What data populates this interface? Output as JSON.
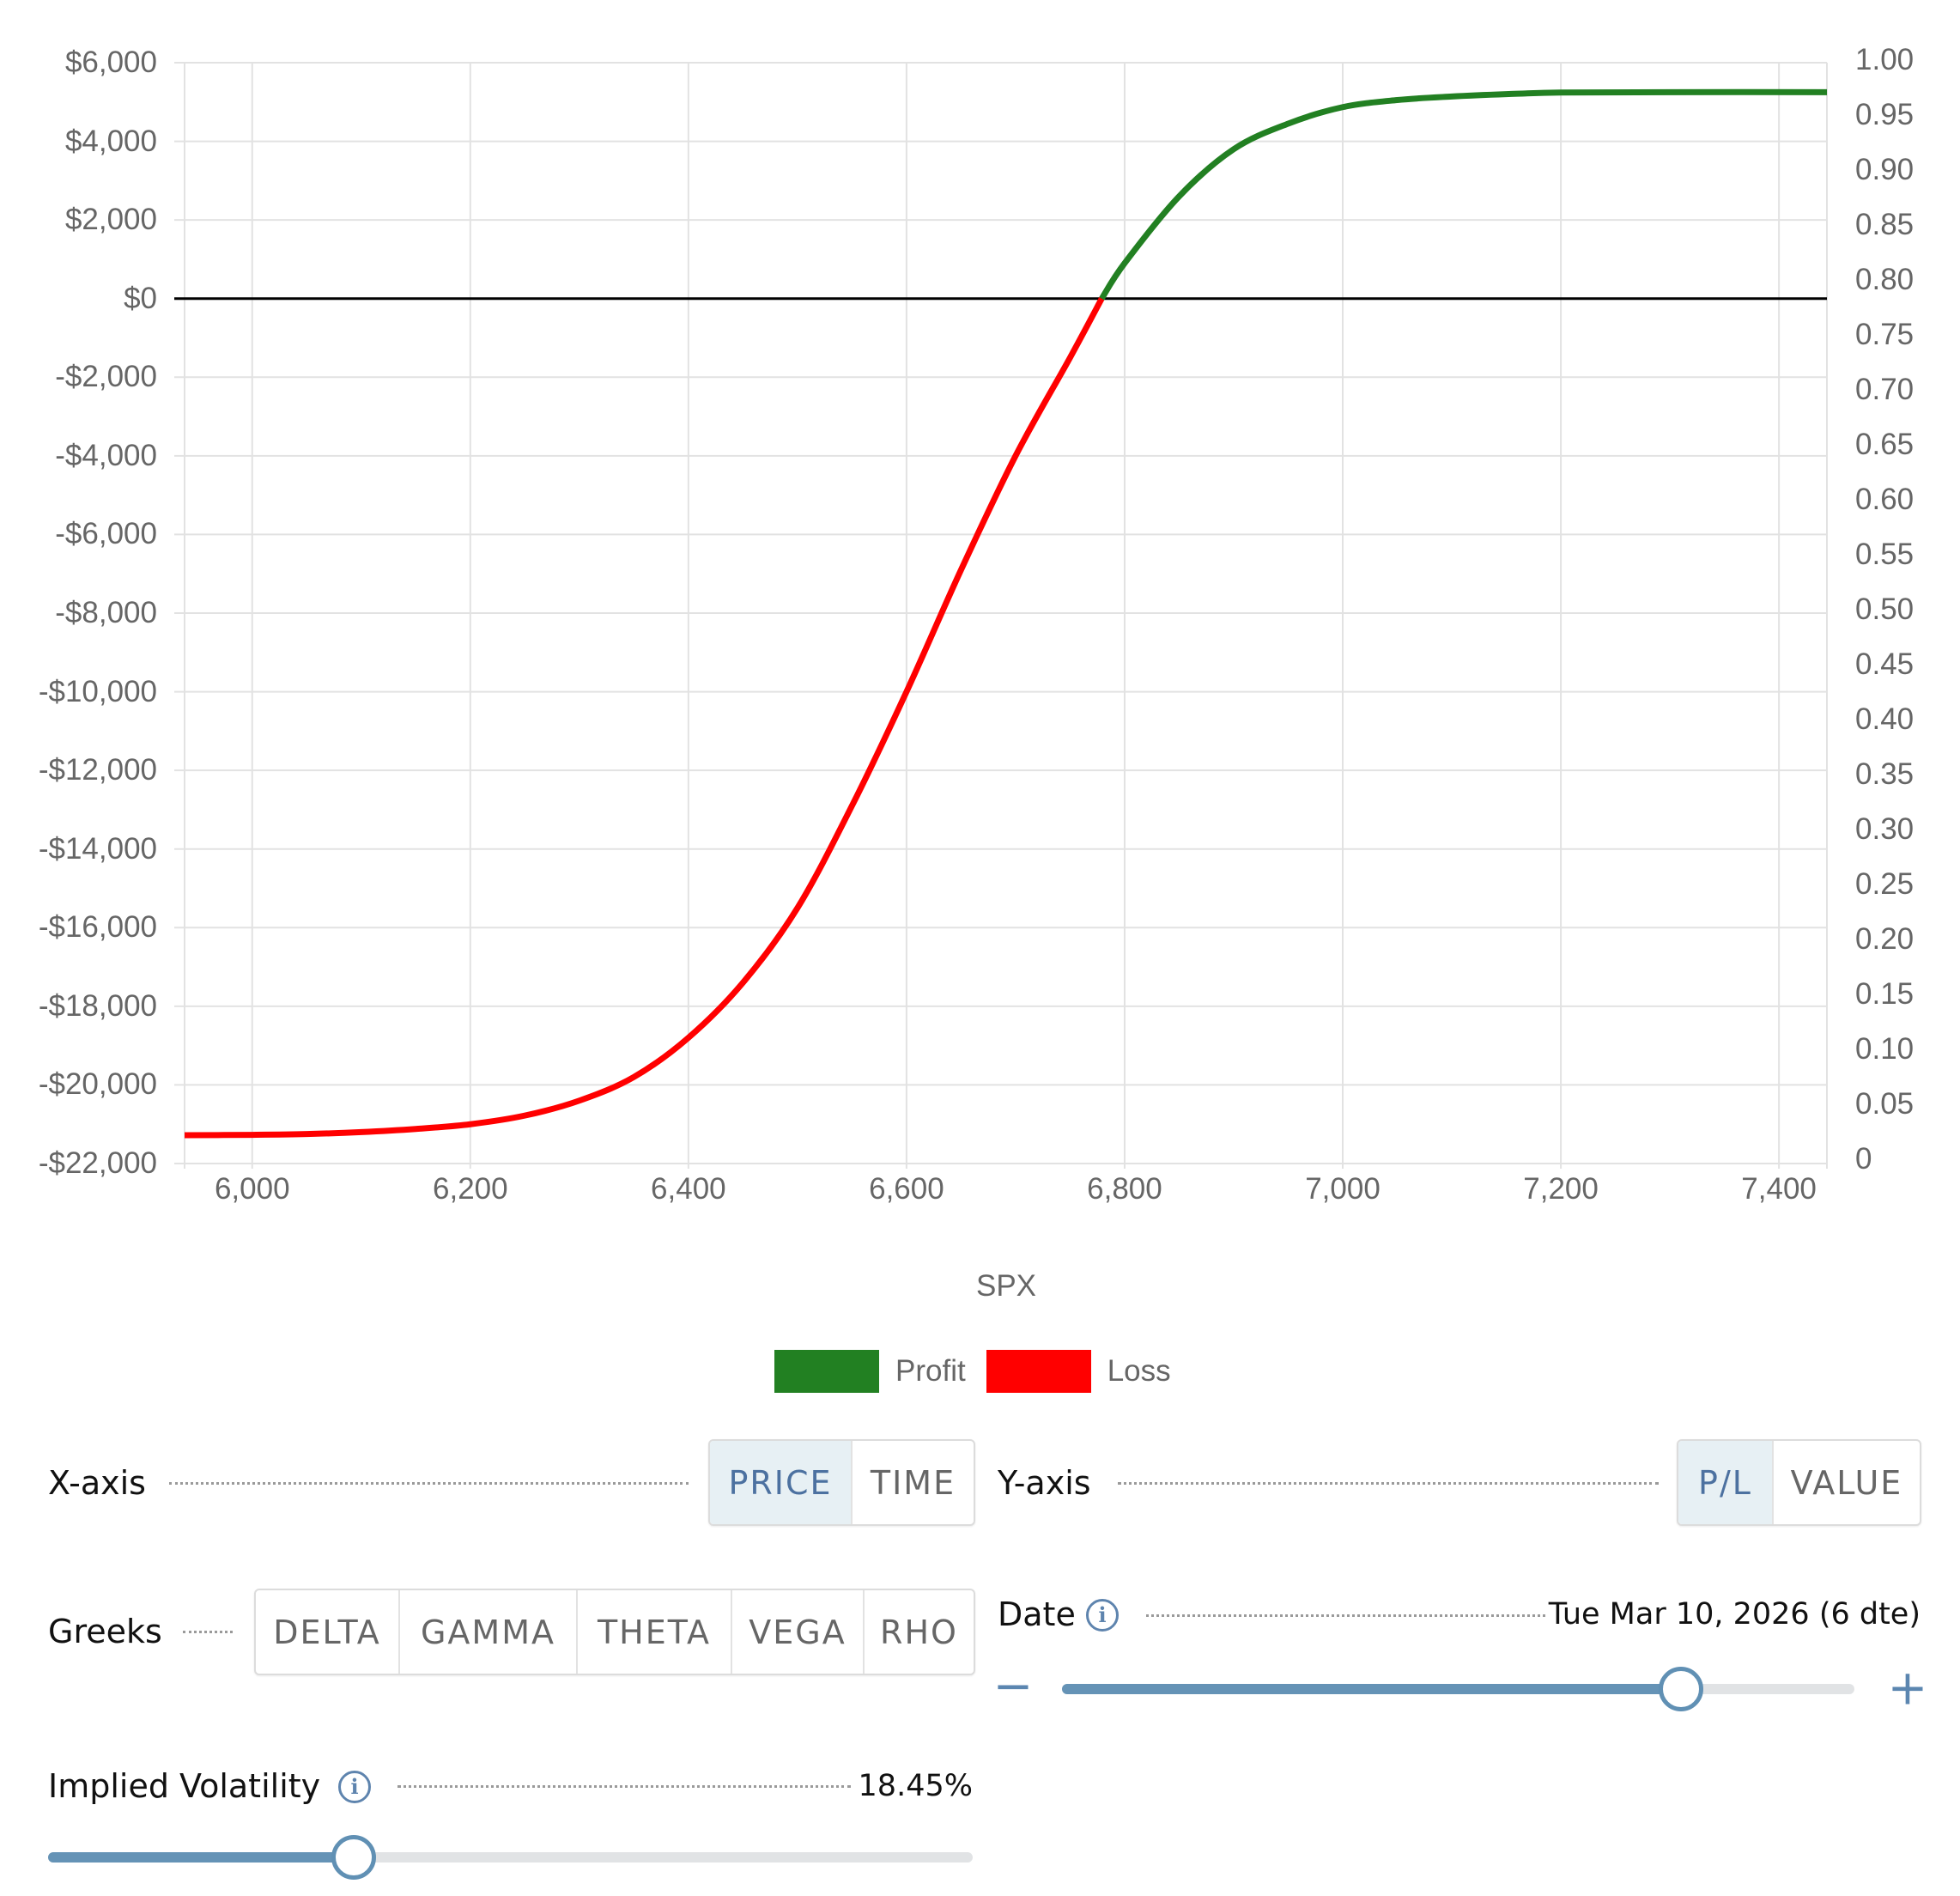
{
  "chart_data": {
    "type": "line",
    "title": "",
    "xlabel": "SPX",
    "ylabel": "",
    "xlim": [
      5938,
      7444
    ],
    "ylim": [
      -22000,
      6000
    ],
    "y2lim": [
      0,
      1.0
    ],
    "grid": true,
    "legend_position": "bottom",
    "x_ticks": [
      "6,000",
      "6,200",
      "6,400",
      "6,600",
      "6,800",
      "7,000",
      "7,200",
      "7,400"
    ],
    "x_tick_values": [
      6000,
      6200,
      6400,
      6600,
      6800,
      7000,
      7200,
      7400
    ],
    "y_ticks": [
      "$6,000",
      "$4,000",
      "$2,000",
      "$0",
      "-$2,000",
      "-$4,000",
      "-$6,000",
      "-$8,000",
      "-$10,000",
      "-$12,000",
      "-$14,000",
      "-$16,000",
      "-$18,000",
      "-$20,000",
      "-$22,000"
    ],
    "y_tick_values": [
      6000,
      4000,
      2000,
      0,
      -2000,
      -4000,
      -6000,
      -8000,
      -10000,
      -12000,
      -14000,
      -16000,
      -18000,
      -20000,
      -22000
    ],
    "y2_ticks": [
      "1.00",
      "0.95",
      "0.90",
      "0.85",
      "0.80",
      "0.75",
      "0.70",
      "0.65",
      "0.60",
      "0.55",
      "0.50",
      "0.45",
      "0.40",
      "0.35",
      "0.30",
      "0.25",
      "0.20",
      "0.15",
      "0.10",
      "0.05",
      "0"
    ],
    "breakeven": 6779,
    "series": [
      {
        "name": "P/L",
        "x": [
          5938,
          6000,
          6050,
          6100,
          6150,
          6200,
          6250,
          6300,
          6350,
          6400,
          6450,
          6500,
          6550,
          6600,
          6650,
          6700,
          6750,
          6779,
          6800,
          6850,
          6900,
          6950,
          7000,
          7050,
          7100,
          7150,
          7200,
          7300,
          7444
        ],
        "y": [
          -21280,
          -21270,
          -21250,
          -21200,
          -21120,
          -21000,
          -20780,
          -20400,
          -19800,
          -18800,
          -17400,
          -15500,
          -12900,
          -10000,
          -6900,
          -4000,
          -1500,
          0,
          900,
          2600,
          3800,
          4450,
          4870,
          5050,
          5140,
          5200,
          5240,
          5250,
          5250
        ]
      }
    ],
    "legend": [
      {
        "name": "Profit",
        "color": "#228022"
      },
      {
        "name": "Loss",
        "color": "#ff0000"
      }
    ]
  },
  "colors": {
    "profit": "#228022",
    "loss": "#ff0000",
    "grid": "#e2e2e2",
    "zero_line": "#000000",
    "accent": "#4c71a0",
    "slider": "#6593b6"
  },
  "controls": {
    "x_axis": {
      "label": "X-axis",
      "options": [
        "PRICE",
        "TIME"
      ],
      "selected": "PRICE"
    },
    "y_axis": {
      "label": "Y-axis",
      "options": [
        "P/L",
        "VALUE"
      ],
      "selected": "P/L"
    },
    "greeks": {
      "label": "Greeks",
      "options": [
        "DELTA",
        "GAMMA",
        "THETA",
        "VEGA",
        "RHO"
      ]
    },
    "date": {
      "label": "Date",
      "value": "Tue Mar 10, 2026 (6 dte)",
      "minus": "−",
      "plus": "+",
      "slider_pct": 78.1
    },
    "iv": {
      "label": "Implied Volatility",
      "value": "18.45%",
      "slider_pct": 33.1
    },
    "info_glyph": "i"
  }
}
